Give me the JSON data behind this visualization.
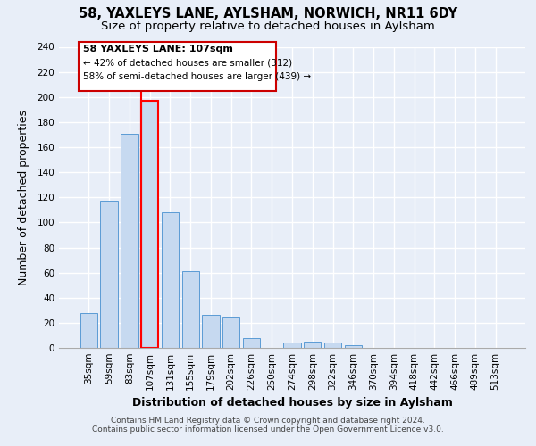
{
  "title": "58, YAXLEYS LANE, AYLSHAM, NORWICH, NR11 6DY",
  "subtitle": "Size of property relative to detached houses in Aylsham",
  "xlabel": "Distribution of detached houses by size in Aylsham",
  "ylabel": "Number of detached properties",
  "bar_labels": [
    "35sqm",
    "59sqm",
    "83sqm",
    "107sqm",
    "131sqm",
    "155sqm",
    "179sqm",
    "202sqm",
    "226sqm",
    "250sqm",
    "274sqm",
    "298sqm",
    "322sqm",
    "346sqm",
    "370sqm",
    "394sqm",
    "418sqm",
    "442sqm",
    "466sqm",
    "489sqm",
    "513sqm"
  ],
  "bar_heights": [
    28,
    117,
    171,
    197,
    108,
    61,
    26,
    25,
    8,
    0,
    4,
    5,
    4,
    2,
    0,
    0,
    0,
    0,
    0,
    0,
    0
  ],
  "bar_color": "#c6d9f0",
  "bar_edgecolor": "#5b9bd5",
  "highlight_index": 3,
  "highlight_color": "#ff0000",
  "ylim": [
    0,
    240
  ],
  "yticks": [
    0,
    20,
    40,
    60,
    80,
    100,
    120,
    140,
    160,
    180,
    200,
    220,
    240
  ],
  "annotation_title": "58 YAXLEYS LANE: 107sqm",
  "annotation_line1": "← 42% of detached houses are smaller (312)",
  "annotation_line2": "58% of semi-detached houses are larger (439) →",
  "annotation_box_color": "#ffffff",
  "annotation_box_edgecolor": "#cc0000",
  "footer_line1": "Contains HM Land Registry data © Crown copyright and database right 2024.",
  "footer_line2": "Contains public sector information licensed under the Open Government Licence v3.0.",
  "background_color": "#e8eef8",
  "plot_bg_color": "#e8eef8",
  "grid_color": "#ffffff",
  "title_fontsize": 10.5,
  "subtitle_fontsize": 9.5,
  "axis_label_fontsize": 9,
  "tick_fontsize": 7.5,
  "footer_fontsize": 6.5
}
